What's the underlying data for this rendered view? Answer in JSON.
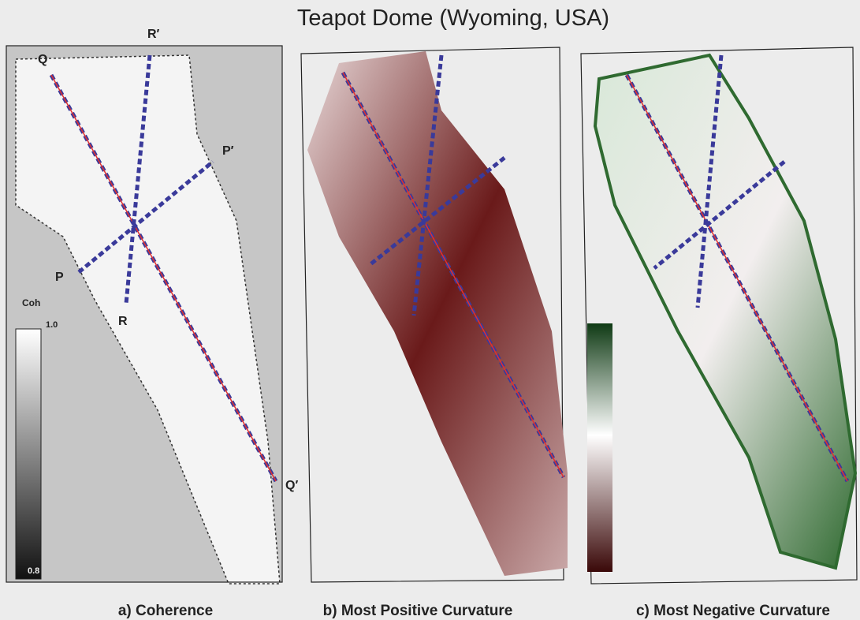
{
  "title": "Teapot Dome (Wyoming, USA)",
  "panels": [
    {
      "caption": "a) Coherence"
    },
    {
      "caption": "b) Most Positive Curvature"
    },
    {
      "caption": "c) Most Negative Curvature"
    }
  ],
  "profile_labels": {
    "q": "Q",
    "q_prime": "Q′",
    "r": "R",
    "r_prime": "R′",
    "p": "P",
    "p_prime": "P′"
  },
  "colorbar": {
    "label": "Coh",
    "max": "1.0",
    "min": "0.8"
  }
}
